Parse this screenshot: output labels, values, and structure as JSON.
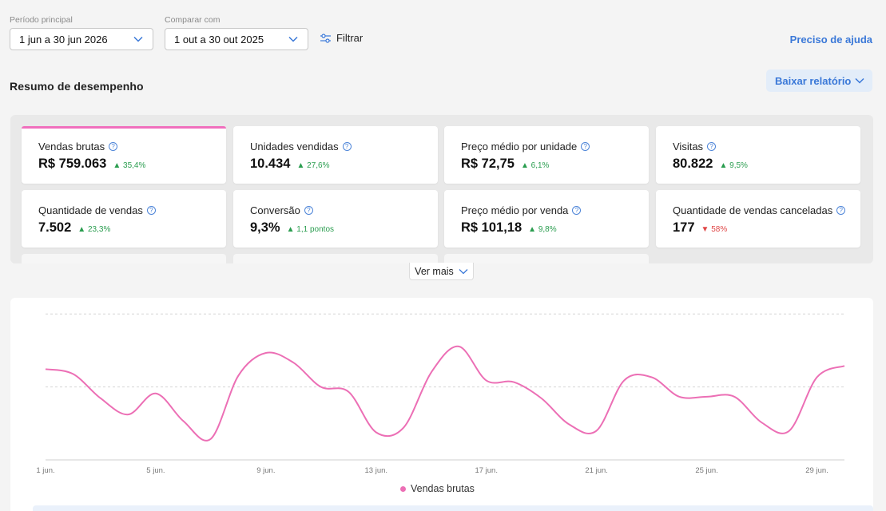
{
  "filters": {
    "period_label": "Período principal",
    "period_value": "1 jun a 30 jun 2026",
    "compare_label": "Comparar com",
    "compare_value": "1 out a 30 out 2025",
    "filter_label": "Filtrar"
  },
  "header": {
    "help_link": "Preciso de ajuda",
    "section_title": "Resumo de desempenho",
    "download_label": "Baixar relatório"
  },
  "metrics": [
    {
      "title": "Vendas brutas",
      "value": "R$ 759.063",
      "delta": "35,4%",
      "direction": "up"
    },
    {
      "title": "Unidades vendidas",
      "value": "10.434",
      "delta": "27,6%",
      "direction": "up"
    },
    {
      "title": "Preço médio por unidade",
      "value": "R$ 72,75",
      "delta": "6,1%",
      "direction": "up"
    },
    {
      "title": "Visitas",
      "value": "80.822",
      "delta": "9,5%",
      "direction": "up"
    },
    {
      "title": "Quantidade de vendas",
      "value": "7.502",
      "delta": "23,3%",
      "direction": "up"
    },
    {
      "title": "Conversão",
      "value": "9,3%",
      "delta": "1,1 pontos",
      "direction": "up"
    },
    {
      "title": "Preço médio por venda",
      "value": "R$ 101,18",
      "delta": "9,8%",
      "direction": "up"
    },
    {
      "title": "Quantidade de vendas canceladas",
      "value": "177",
      "delta": "58%",
      "direction": "down"
    }
  ],
  "ver_mais": "Ver mais",
  "colors": {
    "accent": "#ec6fb5",
    "link": "#3a78d8",
    "positive": "#2a9d4f",
    "negative": "#e04848"
  },
  "chart_data": {
    "type": "line",
    "x_ticks": [
      "1 jun.",
      "5 jun.",
      "9 jun.",
      "13 jun.",
      "17 jun.",
      "21 jun.",
      "25 jun.",
      "29 jun."
    ],
    "x_tick_days": [
      1,
      5,
      9,
      13,
      17,
      21,
      25,
      29
    ],
    "x_range": [
      1,
      30
    ],
    "y_range": [
      0,
      100
    ],
    "grid": true,
    "legend_position": "bottom",
    "series": [
      {
        "name": "Vendas brutas",
        "color": "#ec6fb5",
        "x": [
          1,
          2,
          3,
          4,
          5,
          6,
          7,
          8,
          9,
          10,
          11,
          12,
          13,
          14,
          15,
          16,
          17,
          18,
          19,
          20,
          21,
          22,
          23,
          24,
          25,
          26,
          27,
          28,
          29,
          30
        ],
        "values": [
          56,
          53,
          38,
          28,
          41,
          24,
          13,
          52,
          66,
          60,
          45,
          42,
          17,
          20,
          54,
          70,
          49,
          48,
          38,
          22,
          18,
          49,
          51,
          39,
          39,
          39,
          23,
          18,
          51,
          58
        ]
      }
    ]
  }
}
